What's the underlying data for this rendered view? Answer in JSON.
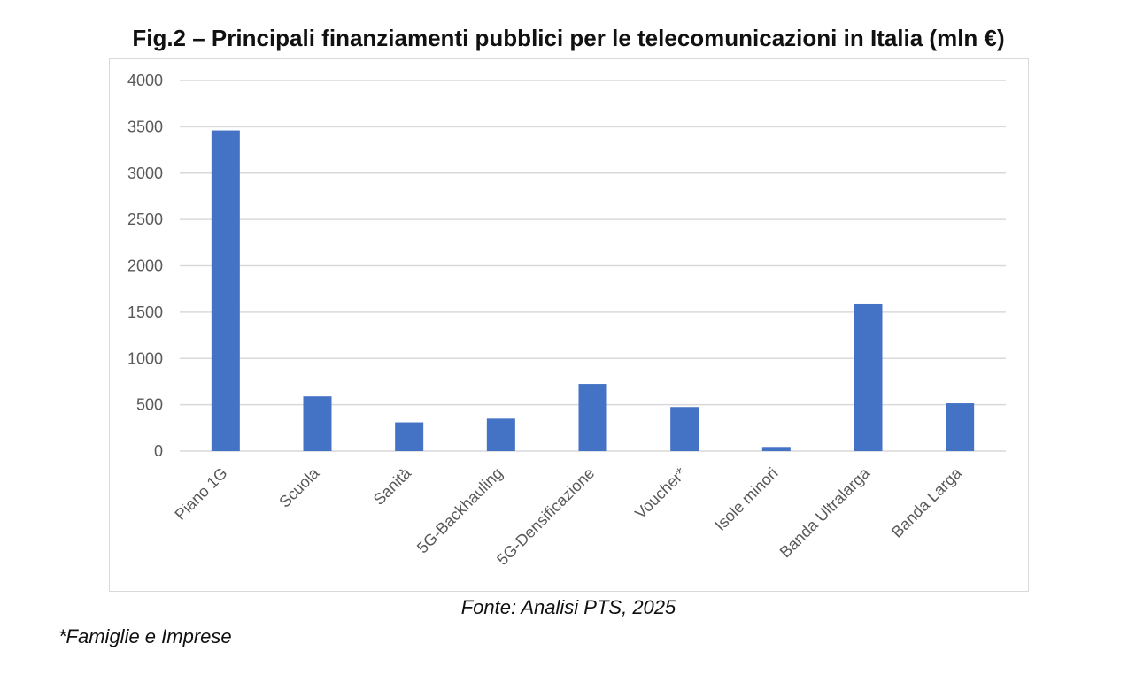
{
  "chart_data": {
    "type": "bar",
    "title": "Fig.2 – Principali finanziamenti pubblici per le telecomunicazioni in Italia (mln €)",
    "categories": [
      "Piano 1G",
      "Scuola",
      "Sanità",
      "5G-Backhauling",
      "5G-Densificazione",
      "Voucher*",
      "Isole minori",
      "Banda Ultralarga",
      "Banda Larga"
    ],
    "values": [
      3460,
      590,
      310,
      350,
      725,
      475,
      45,
      1585,
      515
    ],
    "ylim": [
      0,
      4000
    ],
    "yticks": [
      0,
      500,
      1000,
      1500,
      2000,
      2500,
      3000,
      3500,
      4000
    ],
    "xlabel": "",
    "ylabel": "",
    "grid": true,
    "bar_color": "#4472C4"
  },
  "source": "Fonte: Analisi PTS, 2025",
  "footnote": "*Famiglie e Imprese"
}
